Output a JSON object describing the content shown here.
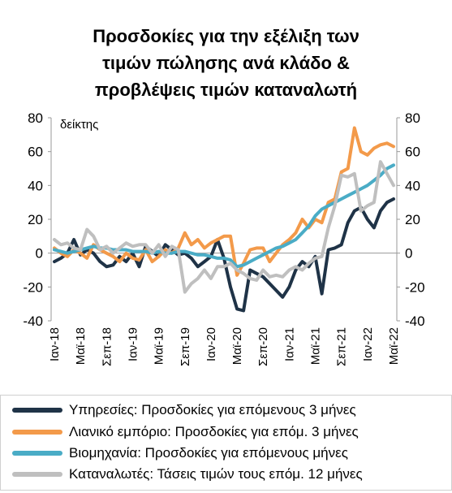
{
  "chart_data": {
    "type": "line",
    "title": [
      "Προσδοκίες για την εξέλιξη των",
      "τιμών πώλησης ανά κλάδο &",
      "προβλέψεις τιμών καταναλωτή"
    ],
    "ylabel": "δείκτης",
    "ylim": [
      -40,
      80
    ],
    "yticks": [
      "-40",
      "-20",
      "0",
      "20",
      "40",
      "60",
      "80"
    ],
    "y_right_axis": true,
    "grid": false,
    "legend_position": "bottom",
    "x_tick_labels": [
      "Ιαν-18",
      "Μαϊ-18",
      "Σεπ-18",
      "Ιαν-19",
      "Μαϊ-19",
      "Σεπ-19",
      "Ιαν-20",
      "Μαϊ-20",
      "Σεπ-20",
      "Ιαν-21",
      "Μαϊ-21",
      "Σεπ-21",
      "Ιαν-22",
      "Μαϊ-22"
    ],
    "x": [
      "2018-01",
      "2018-02",
      "2018-03",
      "2018-04",
      "2018-05",
      "2018-06",
      "2018-07",
      "2018-08",
      "2018-09",
      "2018-10",
      "2018-11",
      "2018-12",
      "2019-01",
      "2019-02",
      "2019-03",
      "2019-04",
      "2019-05",
      "2019-06",
      "2019-07",
      "2019-08",
      "2019-09",
      "2019-10",
      "2019-11",
      "2019-12",
      "2020-01",
      "2020-02",
      "2020-03",
      "2020-04",
      "2020-05",
      "2020-06",
      "2020-07",
      "2020-08",
      "2020-09",
      "2020-10",
      "2020-11",
      "2020-12",
      "2021-01",
      "2021-02",
      "2021-03",
      "2021-04",
      "2021-05",
      "2021-06",
      "2021-07",
      "2021-08",
      "2021-09",
      "2021-10",
      "2021-11",
      "2021-12",
      "2022-01",
      "2022-02",
      "2022-03",
      "2022-04",
      "2022-05"
    ],
    "series": [
      {
        "name": "Υπηρεσίες: Προσδοκίες για επόμενους 3 μήνες",
        "color": "#1f3347",
        "values": [
          -5,
          -3,
          0,
          8,
          -1,
          2,
          0,
          -5,
          -8,
          -7,
          -2,
          -5,
          0,
          -8,
          4,
          1,
          -2,
          5,
          2,
          -1,
          0,
          -3,
          -8,
          -5,
          -2,
          8,
          -3,
          -20,
          -33,
          -34,
          -10,
          -12,
          -14,
          -18,
          -22,
          -26,
          -20,
          -10,
          -5,
          -8,
          -2,
          -24,
          2,
          3,
          5,
          18,
          25,
          27,
          20,
          15,
          25,
          30,
          32
        ]
      },
      {
        "name": "Λιανικό εμπόριο: Προσδοκίες για επόμ. 3 μήνες",
        "color": "#f39a4a",
        "values": [
          3,
          0,
          -2,
          2,
          0,
          -3,
          5,
          2,
          0,
          -2,
          -5,
          0,
          -3,
          -4,
          2,
          -5,
          -2,
          2,
          0,
          3,
          12,
          5,
          8,
          3,
          6,
          8,
          10,
          10,
          -13,
          -6,
          2,
          3,
          3,
          -5,
          0,
          5,
          8,
          12,
          20,
          15,
          20,
          18,
          30,
          32,
          48,
          50,
          74,
          60,
          58,
          62,
          64,
          65,
          63
        ]
      },
      {
        "name": "Βιομηχανία: Προσδοκίες για επόμενους μήνες",
        "color": "#4aacc6",
        "values": [
          2,
          1,
          0,
          1,
          2,
          3,
          4,
          3,
          3,
          2,
          2,
          2,
          1,
          1,
          1,
          0,
          1,
          0,
          0,
          1,
          1,
          0,
          -1,
          -1,
          -2,
          -3,
          -3,
          -4,
          -8,
          -7,
          -5,
          -3,
          -1,
          1,
          3,
          4,
          6,
          8,
          12,
          16,
          22,
          26,
          28,
          30,
          32,
          34,
          36,
          38,
          40,
          43,
          46,
          50,
          52
        ]
      },
      {
        "name": "Καταναλωτές: Τάσεις τιμών τους επόμ. 12 μήνες",
        "color": "#bfbfbf",
        "values": [
          8,
          5,
          6,
          3,
          2,
          14,
          10,
          2,
          4,
          0,
          3,
          6,
          4,
          5,
          5,
          0,
          5,
          -2,
          4,
          2,
          -23,
          -18,
          -15,
          -10,
          -15,
          -8,
          -8,
          -6,
          -10,
          -12,
          -15,
          -16,
          -10,
          -14,
          -13,
          -14,
          -10,
          -8,
          -10,
          -6,
          -3,
          -2,
          15,
          28,
          46,
          45,
          47,
          25,
          28,
          30,
          54,
          47,
          40
        ]
      }
    ]
  }
}
